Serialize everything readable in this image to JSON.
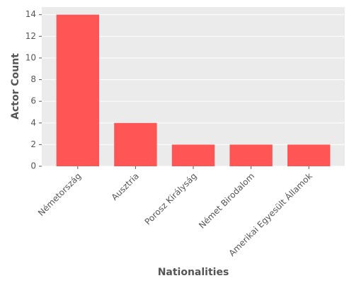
{
  "chart_data": {
    "type": "bar",
    "x_label": "Nationalities",
    "y_label": "Actor Count",
    "categories": [
      "Németország",
      "Ausztria",
      "Porosz Királyság",
      "Német Birodalom",
      "Amerikai Egyesült Államok"
    ],
    "values": [
      14,
      4,
      2,
      2,
      2
    ],
    "color": "#ff5555",
    "ylim": [
      0,
      14.7
    ],
    "yticks": [
      0,
      2,
      4,
      6,
      8,
      10,
      12,
      14
    ],
    "grid": true
  }
}
